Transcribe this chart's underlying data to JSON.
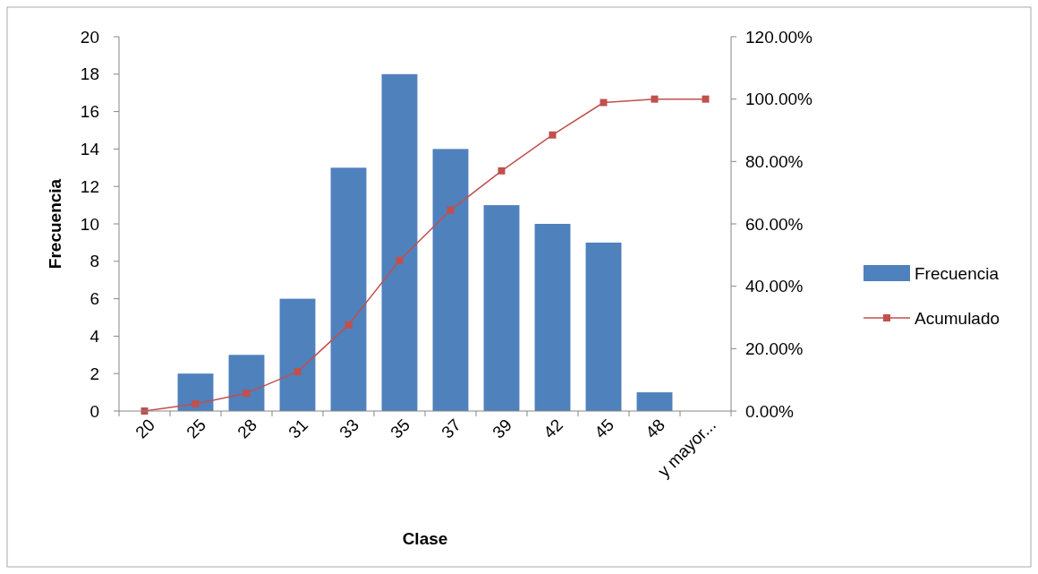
{
  "chart_data": {
    "type": "bar",
    "xlabel": "Clase",
    "ylabel": "Frecuencia",
    "categories": [
      "20",
      "25",
      "28",
      "31",
      "33",
      "35",
      "37",
      "39",
      "42",
      "45",
      "48",
      "y mayor..."
    ],
    "series": [
      {
        "name": "Frecuencia",
        "color": "#4f81bd",
        "values": [
          0,
          2,
          3,
          6,
          13,
          18,
          14,
          11,
          10,
          9,
          1,
          0
        ]
      },
      {
        "name": "Acumulado",
        "type": "line",
        "axis": "y2",
        "color": "#c0504d",
        "values": [
          0,
          2.3,
          5.7,
          12.6,
          27.6,
          48.3,
          64.4,
          77,
          88.5,
          98.9,
          100,
          100
        ]
      }
    ],
    "ylim": [
      0,
      20
    ],
    "yticks": [
      0,
      2,
      4,
      6,
      8,
      10,
      12,
      14,
      16,
      18,
      20
    ],
    "y2lim": [
      0,
      120
    ],
    "y2ticks": [
      {
        "value": 0,
        "label": "0.00%"
      },
      {
        "value": 20,
        "label": "20.00%"
      },
      {
        "value": 40,
        "label": "40.00%"
      },
      {
        "value": 60,
        "label": "60.00%"
      },
      {
        "value": 80,
        "label": "80.00%"
      },
      {
        "value": 100,
        "label": "100.00%"
      },
      {
        "value": 120,
        "label": "120.00%"
      }
    ],
    "marker": "square",
    "legend": "right",
    "grid": false
  }
}
